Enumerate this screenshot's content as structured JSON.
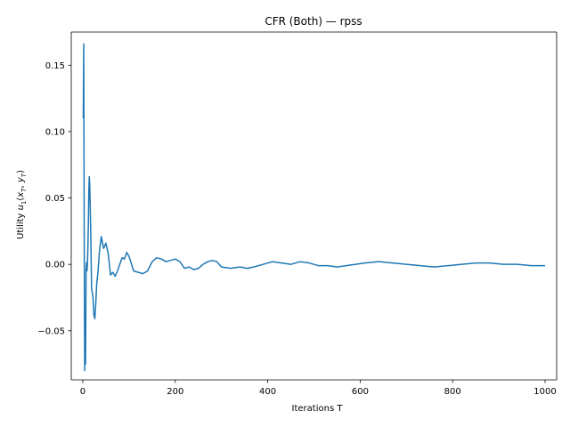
{
  "chart_data": {
    "type": "line",
    "title": "CFR (Both) — rpss",
    "xlabel": "Iterations T",
    "ylabel": "Utility u₁(x_T, y_T)",
    "xlim": [
      -25,
      1025
    ],
    "ylim": [
      -0.087,
      0.175
    ],
    "xticks": [
      0,
      200,
      400,
      600,
      800,
      1000
    ],
    "xtick_labels": [
      "0",
      "200",
      "400",
      "600",
      "800",
      "1000"
    ],
    "yticks": [
      -0.05,
      0.0,
      0.05,
      0.1,
      0.15
    ],
    "ytick_labels": [
      "−0.05",
      "0.00",
      "0.05",
      "0.10",
      "0.15"
    ],
    "grid": false,
    "legend": "none",
    "series": [
      {
        "color": "#1f77b4",
        "x": [
          1,
          2,
          3,
          4,
          5,
          6,
          7,
          8,
          9,
          10,
          11,
          12,
          13,
          14,
          15,
          16,
          17,
          18,
          19,
          20,
          22,
          24,
          26,
          28,
          30,
          33,
          36,
          40,
          45,
          50,
          55,
          60,
          65,
          70,
          75,
          80,
          85,
          90,
          95,
          100,
          110,
          120,
          130,
          140,
          150,
          160,
          170,
          180,
          190,
          200,
          210,
          220,
          230,
          240,
          250,
          260,
          270,
          280,
          290,
          300,
          320,
          340,
          355,
          370,
          390,
          410,
          430,
          450,
          470,
          490,
          510,
          530,
          550,
          570,
          590,
          610,
          640,
          670,
          700,
          730,
          760,
          790,
          820,
          850,
          880,
          910,
          940,
          970,
          1000
        ],
        "y": [
          0.11,
          0.166,
          0.03,
          -0.08,
          -0.036,
          -0.075,
          -0.005,
          0.001,
          -0.005,
          0.0,
          0.012,
          0.03,
          0.055,
          0.066,
          0.06,
          0.045,
          0.025,
          0.005,
          -0.018,
          -0.02,
          -0.025,
          -0.038,
          -0.041,
          -0.03,
          -0.015,
          -0.005,
          0.01,
          0.021,
          0.012,
          0.016,
          0.008,
          -0.008,
          -0.006,
          -0.009,
          -0.005,
          0.0,
          0.005,
          0.004,
          0.009,
          0.006,
          -0.005,
          -0.006,
          -0.007,
          -0.005,
          0.002,
          0.005,
          0.004,
          0.002,
          0.003,
          0.004,
          0.002,
          -0.003,
          -0.002,
          -0.004,
          -0.003,
          0.0,
          0.002,
          0.003,
          0.002,
          -0.002,
          -0.003,
          -0.002,
          -0.003,
          -0.002,
          0.0,
          0.002,
          0.001,
          0.0,
          0.002,
          0.001,
          -0.001,
          -0.001,
          -0.002,
          -0.001,
          0.0,
          0.001,
          0.002,
          0.001,
          0.0,
          -0.001,
          -0.002,
          -0.001,
          0.0,
          0.001,
          0.001,
          0.0,
          0.0,
          -0.001,
          -0.001
        ]
      }
    ]
  }
}
